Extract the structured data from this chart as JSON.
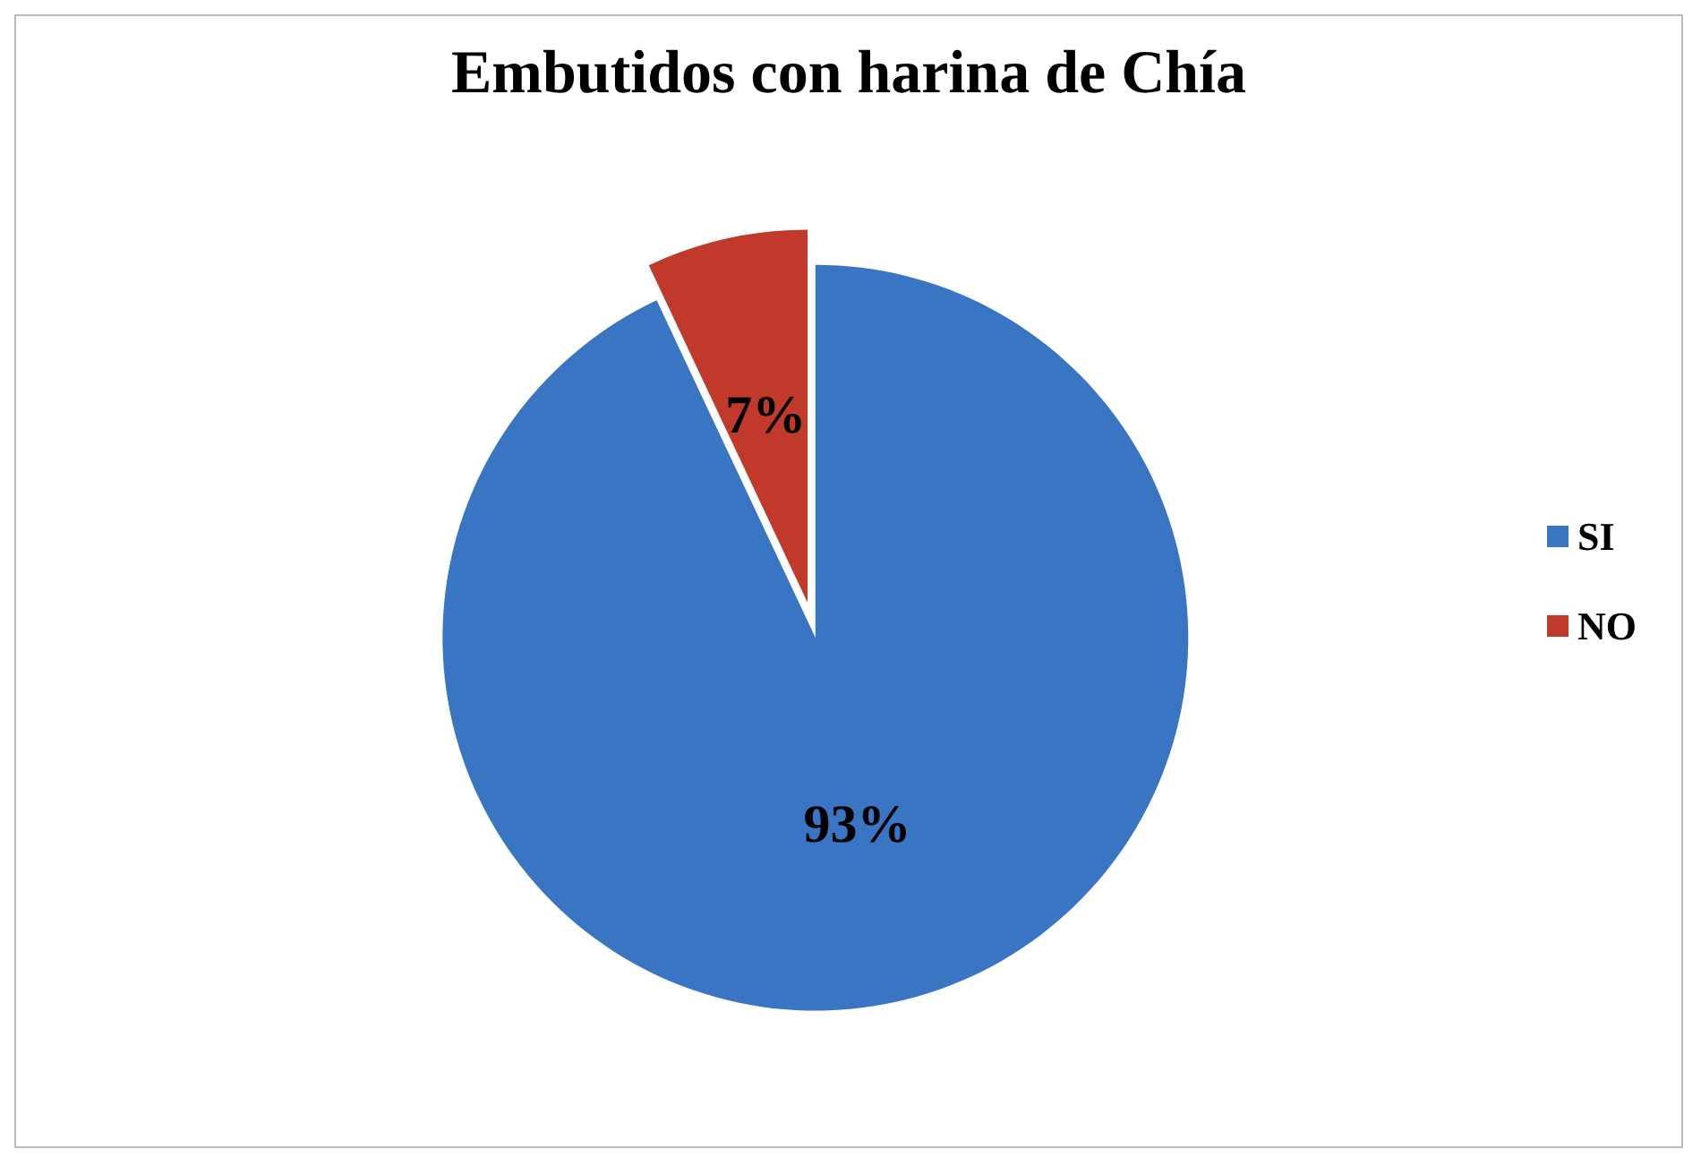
{
  "chart_data": {
    "type": "pie",
    "title": "Embutidos con harina de Chía",
    "categories": [
      "SI",
      "NO"
    ],
    "values": [
      93,
      7
    ],
    "colors": [
      "#3a75c4",
      "#c0392b"
    ],
    "value_labels": [
      "93%",
      "7%"
    ],
    "legend": "right"
  }
}
